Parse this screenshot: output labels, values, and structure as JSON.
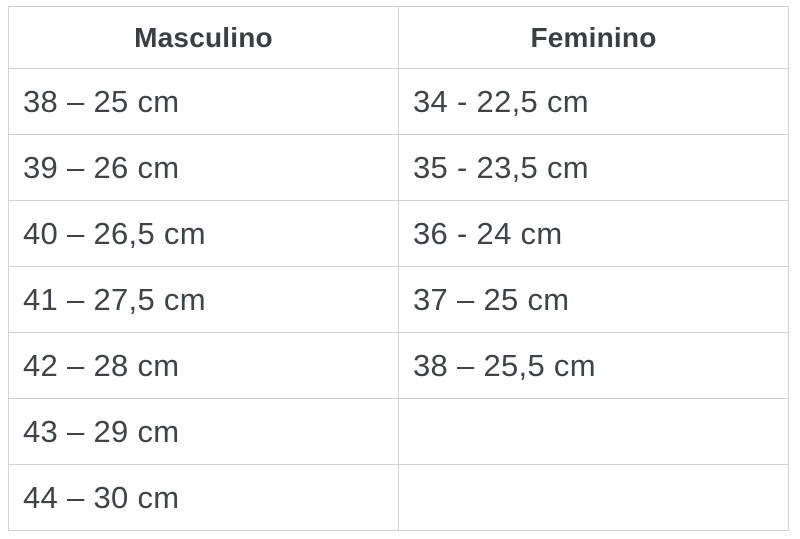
{
  "chart_data": {
    "type": "table",
    "columns": [
      "Masculino",
      "Feminino"
    ],
    "rows": [
      [
        "38 – 25 cm",
        "34 - 22,5 cm"
      ],
      [
        "39 – 26 cm",
        "35 - 23,5 cm"
      ],
      [
        "40 – 26,5 cm",
        "36 - 24 cm"
      ],
      [
        "41 – 27,5 cm",
        "37 – 25 cm"
      ],
      [
        "42 – 28 cm",
        "38 – 25,5 cm"
      ],
      [
        "43 – 29 cm",
        ""
      ],
      [
        "44 – 30 cm",
        ""
      ]
    ],
    "title": "",
    "notes": "Shoe size to foot length conversion table; left column men's sizes, right column women's sizes",
    "layout": {
      "grid": true,
      "header_row": true
    }
  },
  "colors": {
    "text": "#3f4449",
    "header_text": "#3a3f44",
    "border": "#d2d2d2",
    "background": "#ffffff"
  }
}
